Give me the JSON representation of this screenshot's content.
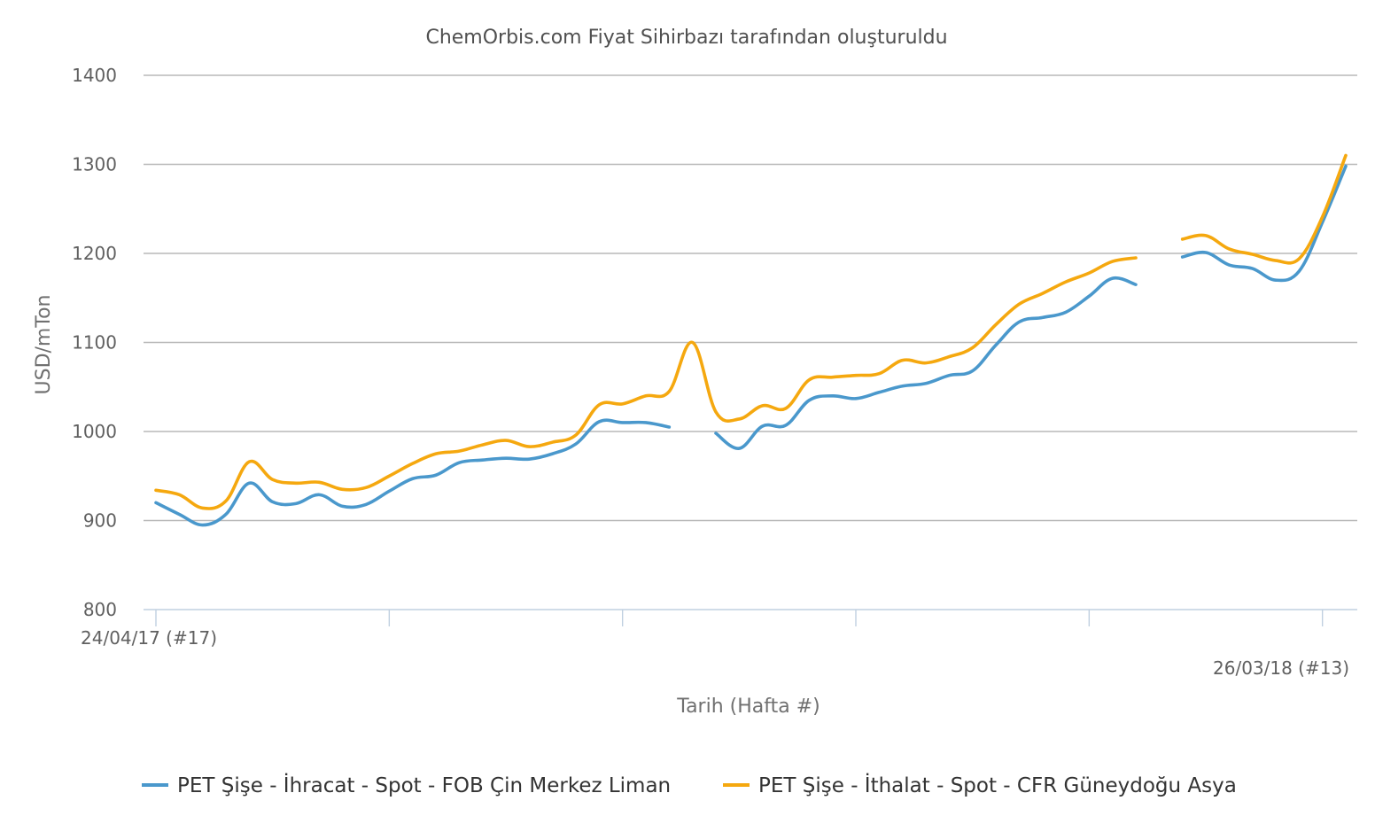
{
  "chart_data": {
    "type": "line",
    "title": "ChemOrbis.com Fiyat Sihirbazı tarafından oluşturuldu",
    "xlabel": "Tarih (Hafta #)",
    "ylabel": "USD/mTon",
    "ylim": [
      800,
      1400
    ],
    "yticks": [
      800,
      900,
      1000,
      1100,
      1200,
      1300,
      1400
    ],
    "x_start_label": "24/04/17 (#17)",
    "x_end_label": "26/03/18 (#13)",
    "grid": true,
    "legend_position": "bottom",
    "series": [
      {
        "name": "PET Şişe - İhracat - Spot - FOB Çin Merkez Liman",
        "color": "#4a98cc",
        "values": [
          920,
          907,
          895,
          907,
          942,
          921,
          919,
          929,
          916,
          918,
          933,
          947,
          951,
          965,
          968,
          970,
          969,
          975,
          986,
          1011,
          1010,
          1010,
          1005,
          null,
          998,
          981,
          1006,
          1007,
          1035,
          1040,
          1037,
          1044,
          1051,
          1054,
          1063,
          1068,
          1097,
          1123,
          1128,
          1134,
          1152,
          1172,
          1165,
          null,
          1196,
          1201,
          1187,
          1183,
          1170,
          1180,
          1235,
          1298
        ]
      },
      {
        "name": "PET Şişe - İthalat - Spot - CFR Güneydoğu Asya",
        "color": "#f5a80f",
        "values": [
          934,
          929,
          914,
          922,
          966,
          946,
          942,
          943,
          935,
          937,
          950,
          964,
          975,
          978,
          985,
          990,
          983,
          988,
          996,
          1030,
          1031,
          1040,
          1045,
          1100,
          1022,
          1014,
          1029,
          1026,
          1058,
          1061,
          1063,
          1065,
          1080,
          1077,
          1084,
          1094,
          1120,
          1143,
          1155,
          1168,
          1178,
          1191,
          1195,
          null,
          1216,
          1220,
          1205,
          1199,
          1192,
          1194,
          1241,
          1310
        ]
      }
    ]
  }
}
